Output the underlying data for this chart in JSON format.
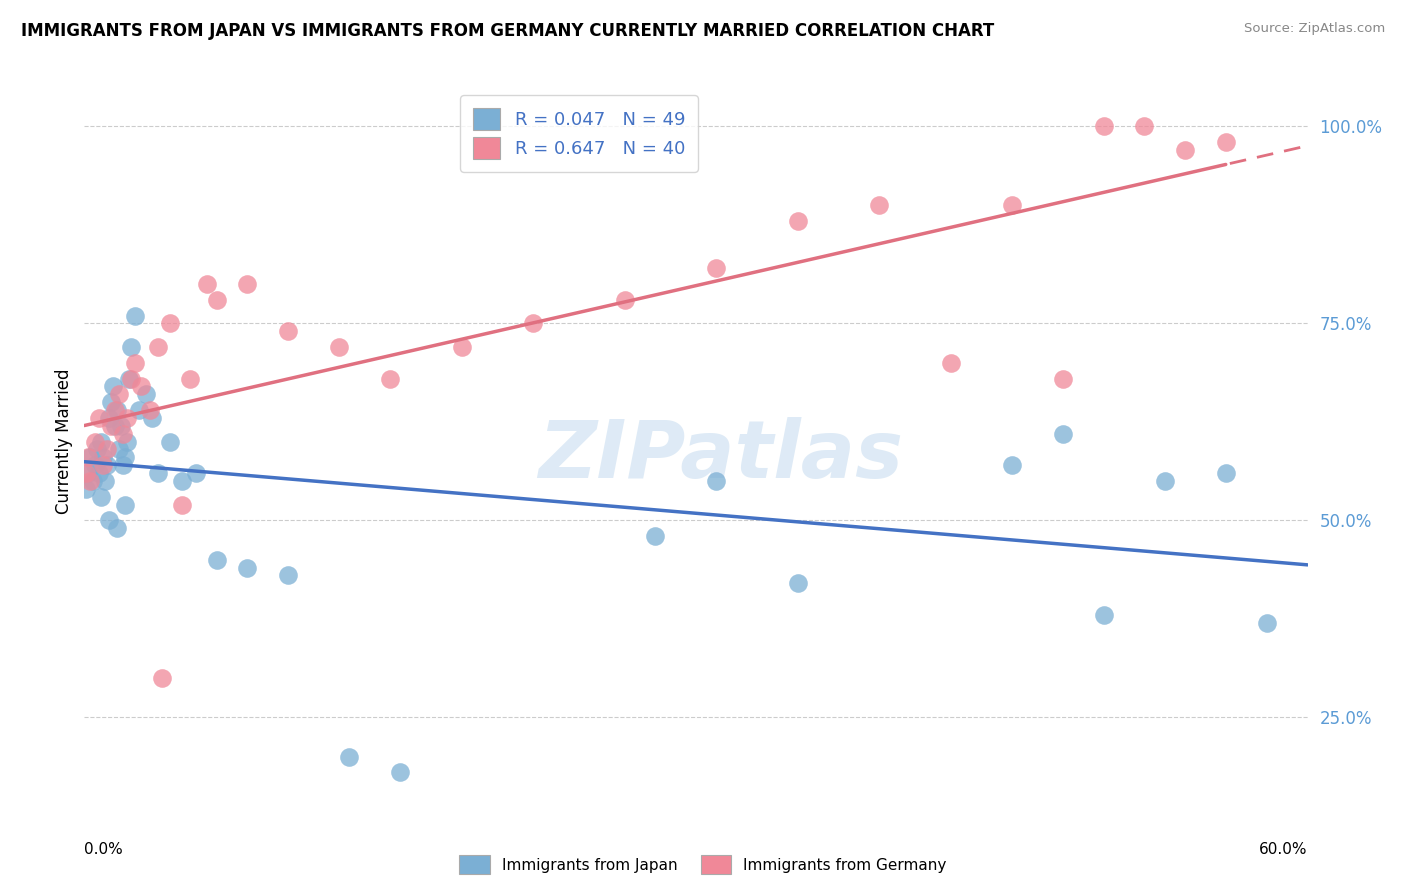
{
  "title": "IMMIGRANTS FROM JAPAN VS IMMIGRANTS FROM GERMANY CURRENTLY MARRIED CORRELATION CHART",
  "source_text": "Source: ZipAtlas.com",
  "ylabel": "Currently Married",
  "xmin": 0.0,
  "xmax": 0.6,
  "ymin": 0.13,
  "ymax": 1.07,
  "ytick_vals": [
    0.25,
    0.5,
    0.75,
    1.0
  ],
  "ytick_labels": [
    "25.0%",
    "50.0%",
    "75.0%",
    "100.0%"
  ],
  "japan_color": "#7bafd4",
  "germany_color": "#f08898",
  "japan_line_color": "#4472c4",
  "germany_line_color": "#e07080",
  "japan_R": 0.047,
  "japan_N": 49,
  "germany_R": 0.647,
  "germany_N": 40,
  "watermark": "ZIPatlas",
  "japan_x": [
    0.001,
    0.002,
    0.003,
    0.004,
    0.005,
    0.006,
    0.007,
    0.008,
    0.009,
    0.01,
    0.011,
    0.012,
    0.013,
    0.014,
    0.015,
    0.016,
    0.017,
    0.018,
    0.019,
    0.02,
    0.021,
    0.022,
    0.023,
    0.025,
    0.027,
    0.03,
    0.033,
    0.036,
    0.042,
    0.048,
    0.055,
    0.065,
    0.08,
    0.1,
    0.13,
    0.155,
    0.28,
    0.31,
    0.35,
    0.455,
    0.48,
    0.5,
    0.53,
    0.56,
    0.58,
    0.008,
    0.012,
    0.016,
    0.02
  ],
  "japan_y": [
    0.54,
    0.56,
    0.58,
    0.55,
    0.57,
    0.59,
    0.56,
    0.6,
    0.58,
    0.55,
    0.57,
    0.63,
    0.65,
    0.67,
    0.62,
    0.64,
    0.59,
    0.62,
    0.57,
    0.58,
    0.6,
    0.68,
    0.72,
    0.76,
    0.64,
    0.66,
    0.63,
    0.56,
    0.6,
    0.55,
    0.56,
    0.45,
    0.44,
    0.43,
    0.2,
    0.18,
    0.48,
    0.55,
    0.42,
    0.57,
    0.61,
    0.38,
    0.55,
    0.56,
    0.37,
    0.53,
    0.5,
    0.49,
    0.52
  ],
  "germany_x": [
    0.001,
    0.002,
    0.003,
    0.005,
    0.007,
    0.009,
    0.011,
    0.013,
    0.015,
    0.017,
    0.019,
    0.021,
    0.023,
    0.025,
    0.028,
    0.032,
    0.036,
    0.042,
    0.052,
    0.065,
    0.08,
    0.1,
    0.125,
    0.15,
    0.185,
    0.22,
    0.265,
    0.31,
    0.35,
    0.39,
    0.425,
    0.455,
    0.48,
    0.5,
    0.52,
    0.54,
    0.56,
    0.038,
    0.048,
    0.06
  ],
  "germany_y": [
    0.56,
    0.58,
    0.55,
    0.6,
    0.63,
    0.57,
    0.59,
    0.62,
    0.64,
    0.66,
    0.61,
    0.63,
    0.68,
    0.7,
    0.67,
    0.64,
    0.72,
    0.75,
    0.68,
    0.78,
    0.8,
    0.74,
    0.72,
    0.68,
    0.72,
    0.75,
    0.78,
    0.82,
    0.88,
    0.9,
    0.7,
    0.9,
    0.68,
    1.0,
    1.0,
    0.97,
    0.98,
    0.3,
    0.52,
    0.8
  ]
}
